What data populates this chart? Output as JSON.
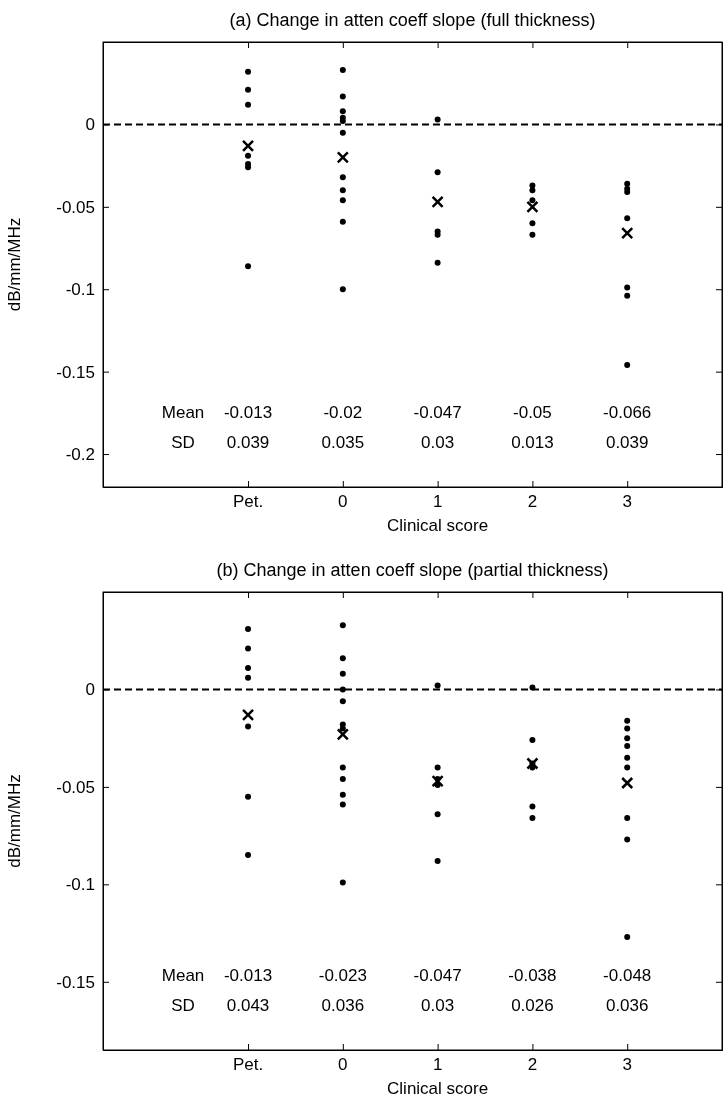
{
  "chart_data": [
    {
      "type": "scatter",
      "title": "(a) Change in atten coeff slope (full thickness)",
      "xlabel": "Clinical score",
      "ylabel": "dB/mm/MHz",
      "categories": [
        "Pet.",
        "0",
        "1",
        "2",
        "3"
      ],
      "ylim": [
        -0.22,
        0.05
      ],
      "yticks": [
        -0.2,
        -0.15,
        -0.1,
        -0.05,
        0
      ],
      "ref_lines": [
        {
          "axis": "y",
          "value": 0,
          "line_style": "dashed",
          "color": "#000000"
        }
      ],
      "series": [
        {
          "marker": "circle",
          "color": "#000000",
          "x": [
            "Pet.",
            "Pet.",
            "Pet.",
            "Pet.",
            "Pet.",
            "Pet.",
            "Pet.",
            "0",
            "0",
            "0",
            "0",
            "0",
            "0",
            "0",
            "0",
            "0",
            "0",
            "0",
            "1",
            "1",
            "1",
            "1",
            "1",
            "2",
            "2",
            "2",
            "2",
            "2",
            "3",
            "3",
            "3",
            "3",
            "3",
            "3",
            "3"
          ],
          "values": [
            0.032,
            0.021,
            0.012,
            -0.019,
            -0.024,
            -0.026,
            -0.086,
            0.033,
            0.017,
            0.008,
            0.004,
            0.002,
            -0.005,
            -0.032,
            -0.04,
            -0.046,
            -0.059,
            -0.1,
            0.003,
            -0.029,
            -0.065,
            -0.067,
            -0.084,
            -0.037,
            -0.04,
            -0.046,
            -0.06,
            -0.067,
            -0.036,
            -0.039,
            -0.041,
            -0.057,
            -0.099,
            -0.104,
            -0.146
          ]
        },
        {
          "marker": "cross",
          "color": "#000000",
          "x": [
            "Pet.",
            "0",
            "1",
            "2",
            "3"
          ],
          "values": [
            -0.013,
            -0.02,
            -0.047,
            -0.05,
            -0.066
          ]
        }
      ],
      "annotations": [
        "Mean",
        "-0.013",
        "-0.02",
        "-0.047",
        "-0.05",
        "-0.066",
        "SD",
        "0.039",
        "0.035",
        "0.03",
        "0.013",
        "0.039"
      ]
    },
    {
      "type": "scatter",
      "title": "(b) Change in atten coeff slope (partial thickness)",
      "xlabel": "Clinical score",
      "ylabel": "dB/mm/MHz",
      "categories": [
        "Pet.",
        "0",
        "1",
        "2",
        "3"
      ],
      "ylim": [
        -0.185,
        0.05
      ],
      "yticks": [
        -0.15,
        -0.1,
        -0.05,
        0
      ],
      "ref_lines": [
        {
          "axis": "y",
          "value": 0,
          "line_style": "dashed",
          "color": "#000000"
        }
      ],
      "series": [
        {
          "marker": "circle",
          "color": "#000000",
          "x": [
            "Pet.",
            "Pet.",
            "Pet.",
            "Pet.",
            "Pet.",
            "Pet.",
            "Pet.",
            "0",
            "0",
            "0",
            "0",
            "0",
            "0",
            "0",
            "0",
            "0",
            "0",
            "0",
            "0",
            "1",
            "1",
            "1",
            "1",
            "1",
            "1",
            "2",
            "2",
            "2",
            "2",
            "2",
            "2",
            "3",
            "3",
            "3",
            "3",
            "3",
            "3",
            "3",
            "3",
            "3"
          ],
          "values": [
            0.031,
            0.021,
            0.011,
            0.006,
            -0.019,
            -0.055,
            -0.085,
            0.033,
            0.016,
            0.008,
            0,
            -0.006,
            -0.018,
            -0.02,
            -0.04,
            -0.046,
            -0.054,
            -0.059,
            -0.099,
            0.002,
            -0.04,
            -0.046,
            -0.049,
            -0.064,
            -0.088,
            0.001,
            -0.026,
            -0.038,
            -0.04,
            -0.06,
            -0.066,
            -0.016,
            -0.02,
            -0.025,
            -0.029,
            -0.035,
            -0.04,
            -0.066,
            -0.077,
            -0.127
          ]
        },
        {
          "marker": "cross",
          "color": "#000000",
          "x": [
            "Pet.",
            "0",
            "1",
            "2",
            "3"
          ],
          "values": [
            -0.013,
            -0.023,
            -0.047,
            -0.038,
            -0.048
          ]
        }
      ],
      "annotations": [
        "Mean",
        "-0.013",
        "-0.023",
        "-0.047",
        "-0.038",
        "-0.048",
        "SD",
        "0.043",
        "0.036",
        "0.03",
        "0.026",
        "0.036"
      ]
    }
  ]
}
